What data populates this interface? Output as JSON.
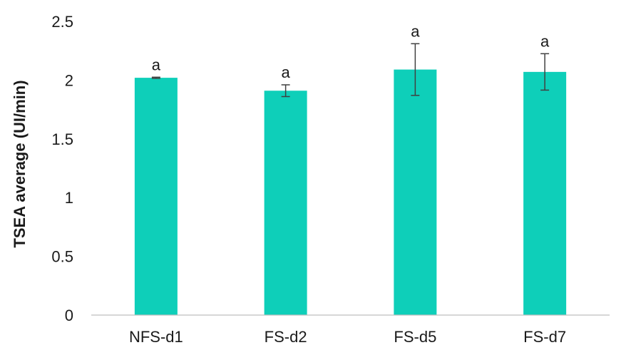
{
  "chart_data": {
    "type": "bar",
    "title": "",
    "xlabel": "",
    "ylabel": "TSEA average (UI/min)",
    "ylim": [
      0,
      2.5
    ],
    "yticks": [
      "0",
      "0.5",
      "1",
      "1.5",
      "2",
      "2.5"
    ],
    "categories": [
      "NFS-d1",
      "FS-d2",
      "FS-d5",
      "FS-d7"
    ],
    "values": [
      2.02,
      1.91,
      2.09,
      2.07
    ],
    "errors": [
      0.005,
      0.05,
      0.22,
      0.155
    ],
    "significance": [
      "a",
      "a",
      "a",
      "a"
    ],
    "bar_color": "#0ecfb9",
    "grid": false,
    "legend": "none"
  }
}
